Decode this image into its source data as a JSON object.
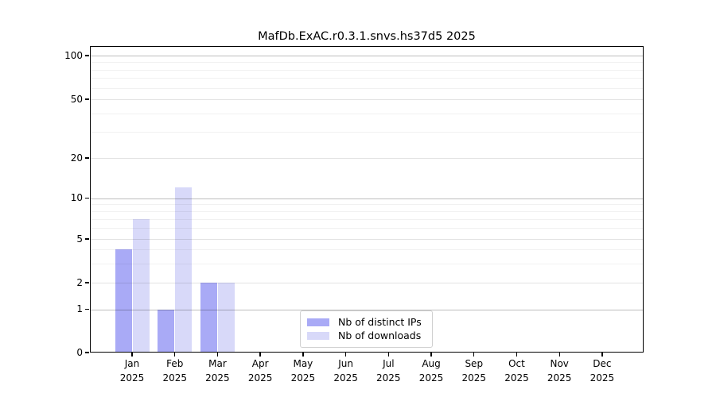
{
  "chart_data": {
    "type": "bar",
    "title": "MafDb.ExAC.r0.3.1.snvs.hs37d5 2025",
    "xlabel": "",
    "ylabel": "",
    "categories": [
      "Jan",
      "Feb",
      "Mar",
      "Apr",
      "May",
      "Jun",
      "Jul",
      "Aug",
      "Sep",
      "Oct",
      "Nov",
      "Dec"
    ],
    "category_year_line": "2025",
    "series": [
      {
        "name": "Nb of distinct IPs",
        "color": "#a9aaf6",
        "values": [
          4,
          1,
          2,
          0,
          0,
          0,
          0,
          0,
          0,
          0,
          0,
          0
        ]
      },
      {
        "name": "Nb of downloads",
        "color": "#d8d9f9",
        "values": [
          7,
          12,
          2,
          0,
          0,
          0,
          0,
          0,
          0,
          0,
          0,
          0
        ]
      }
    ],
    "yticks": [
      0,
      1,
      2,
      5,
      10,
      20,
      50,
      100
    ],
    "minor_gridline_values": [
      3,
      4,
      6,
      7,
      8,
      9,
      30,
      40,
      60,
      70,
      80,
      90
    ],
    "yscale": "log-like (1-2-5 ticks)",
    "ylim": [
      0,
      115
    ],
    "grid": "horizontal only",
    "legend_position": "lower center",
    "background_color": "#ffffff",
    "text_color": "#000000"
  }
}
